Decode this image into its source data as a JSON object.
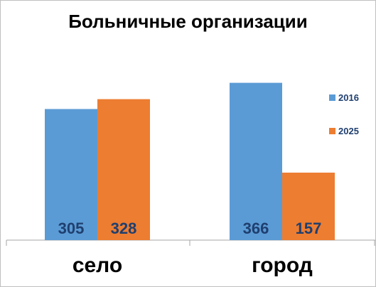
{
  "chart_data": {
    "type": "bar",
    "title": "Больничные организации",
    "categories": [
      "село",
      "город"
    ],
    "series": [
      {
        "name": "2016",
        "values": [
          305,
          366
        ],
        "color": "#5b9bd5"
      },
      {
        "name": "2025",
        "values": [
          328,
          157
        ],
        "color": "#ed7d31"
      }
    ],
    "value_labels": [
      [
        "305",
        "366"
      ],
      [
        "328",
        "157"
      ]
    ],
    "data_label_color": "#1f3f6f",
    "ylim": [
      0,
      400
    ],
    "legend_position": "right",
    "grid": false
  }
}
